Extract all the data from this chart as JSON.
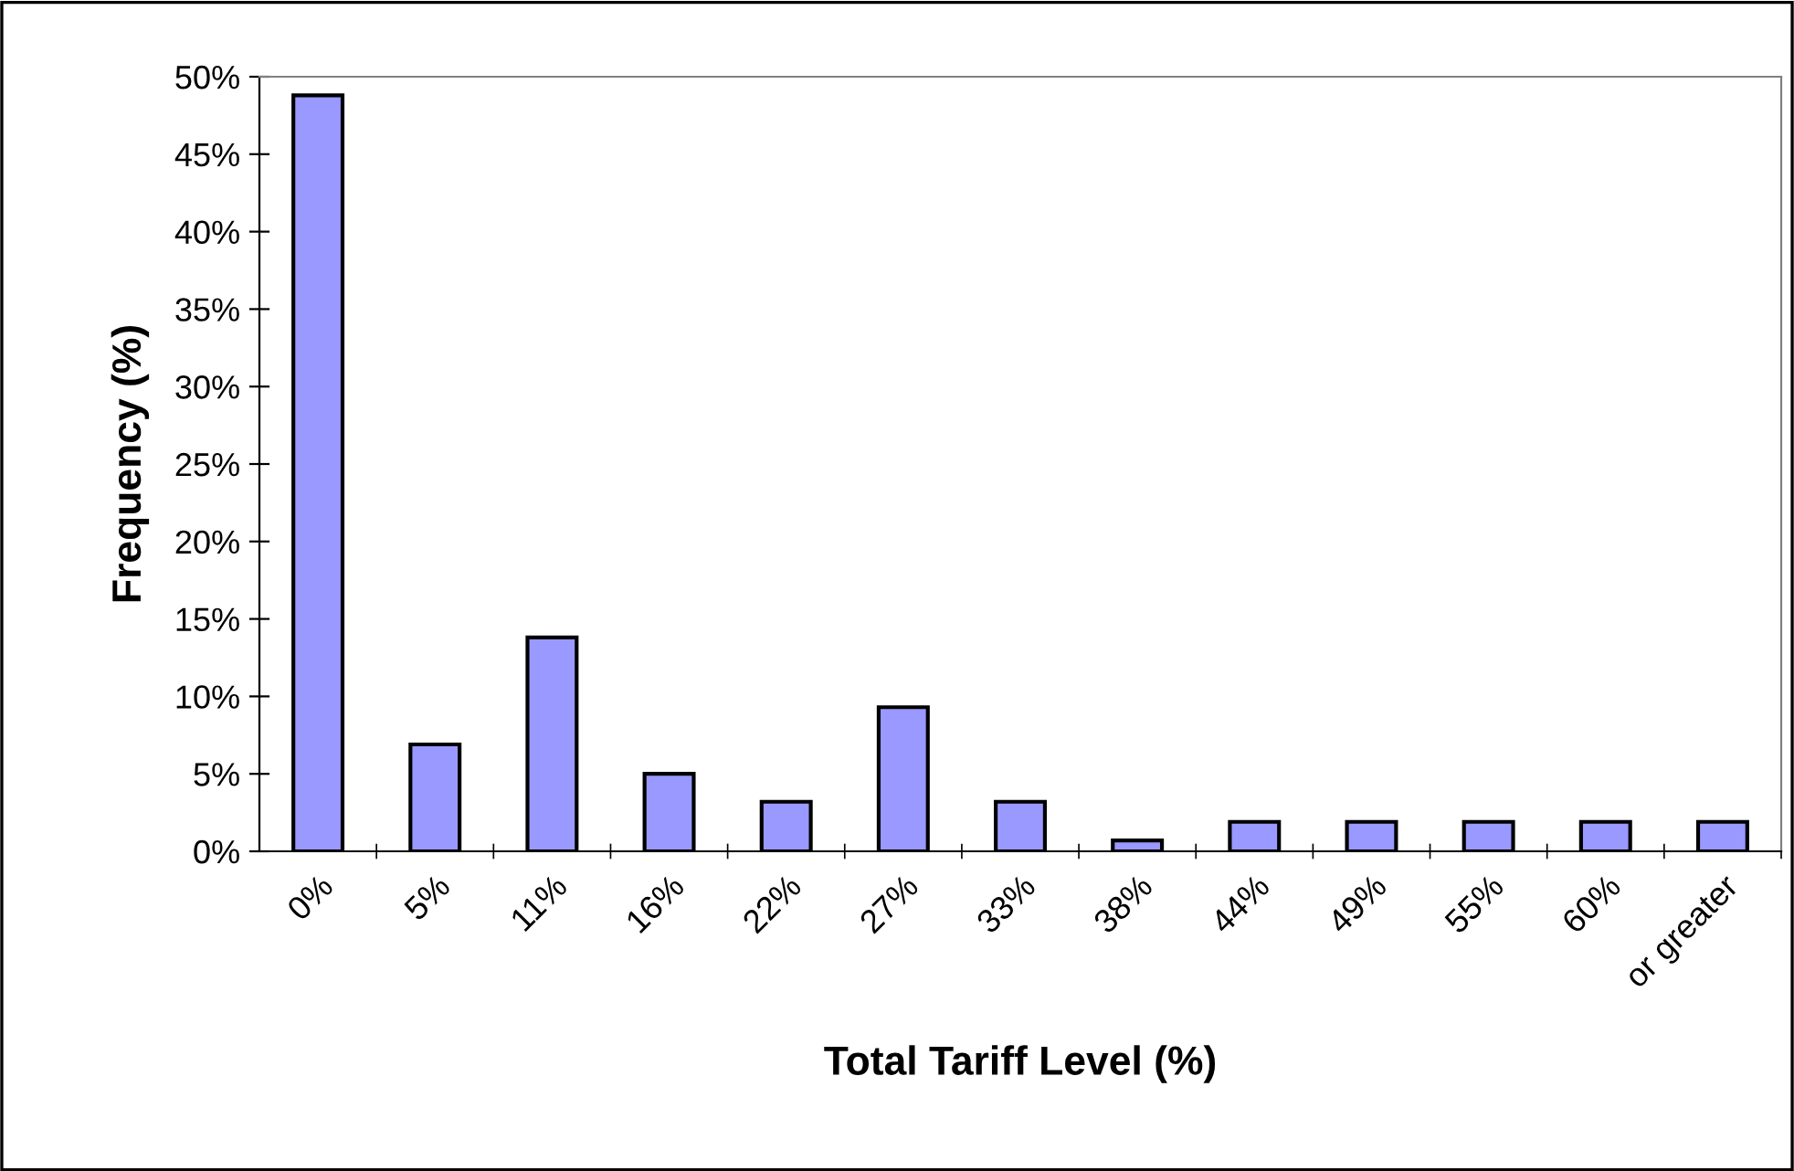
{
  "chart_data": {
    "type": "bar",
    "xlabel": "Total Tariff Level (%)",
    "ylabel": "Frequency (%)",
    "categories": [
      "0%",
      "5%",
      "11%",
      "16%",
      "22%",
      "27%",
      "33%",
      "38%",
      "44%",
      "49%",
      "55%",
      "60%",
      "or greater"
    ],
    "values": [
      48.8,
      6.9,
      13.8,
      5.0,
      3.2,
      9.3,
      3.2,
      0.7,
      1.9,
      1.9,
      1.9,
      1.9,
      1.9
    ],
    "color": "#9999ff",
    "ylim": [
      0,
      50
    ],
    "yticks": [
      {
        "value": 0,
        "label": "0%"
      },
      {
        "value": 5,
        "label": "5%"
      },
      {
        "value": 10,
        "label": "10%"
      },
      {
        "value": 15,
        "label": "15%"
      },
      {
        "value": 20,
        "label": "20%"
      },
      {
        "value": 25,
        "label": "25%"
      },
      {
        "value": 30,
        "label": "30%"
      },
      {
        "value": 35,
        "label": "35%"
      },
      {
        "value": 40,
        "label": "40%"
      },
      {
        "value": 45,
        "label": "45%"
      },
      {
        "value": 50,
        "label": "50%"
      }
    ],
    "grid": false,
    "legend": false
  }
}
